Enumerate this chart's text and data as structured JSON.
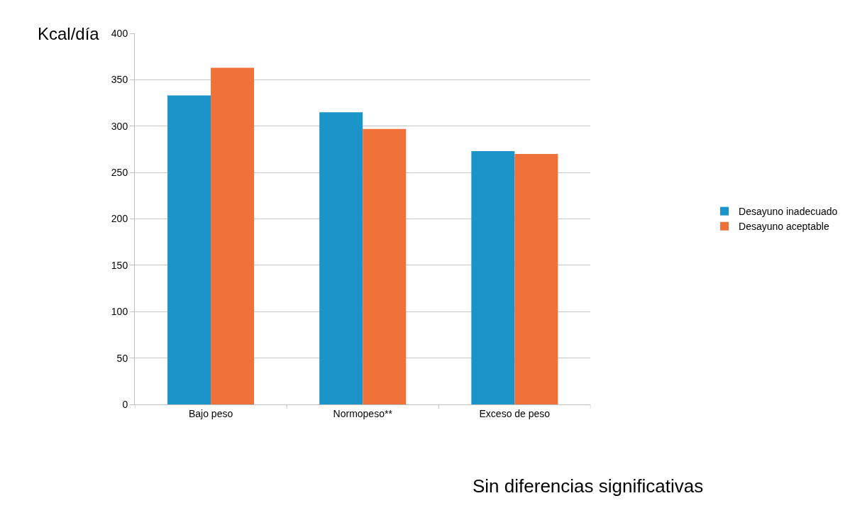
{
  "chart_data": {
    "type": "bar",
    "ylabel": "Kcal/día",
    "categories": [
      "Bajo peso",
      "Normopeso**",
      "Exceso de peso"
    ],
    "series": [
      {
        "name": "Desayuno inadecuado",
        "color": "#1a94c9",
        "values": [
          333,
          315,
          273
        ]
      },
      {
        "name": "Desayuno aceptable",
        "color": "#f0703a",
        "values": [
          363,
          297,
          270
        ]
      }
    ],
    "ylim": [
      0,
      400
    ],
    "yticks": [
      0,
      50,
      100,
      150,
      200,
      250,
      300,
      350,
      400
    ],
    "grid": "y",
    "legend": "right",
    "annotations": [
      "Sin diferencias significativas"
    ]
  }
}
